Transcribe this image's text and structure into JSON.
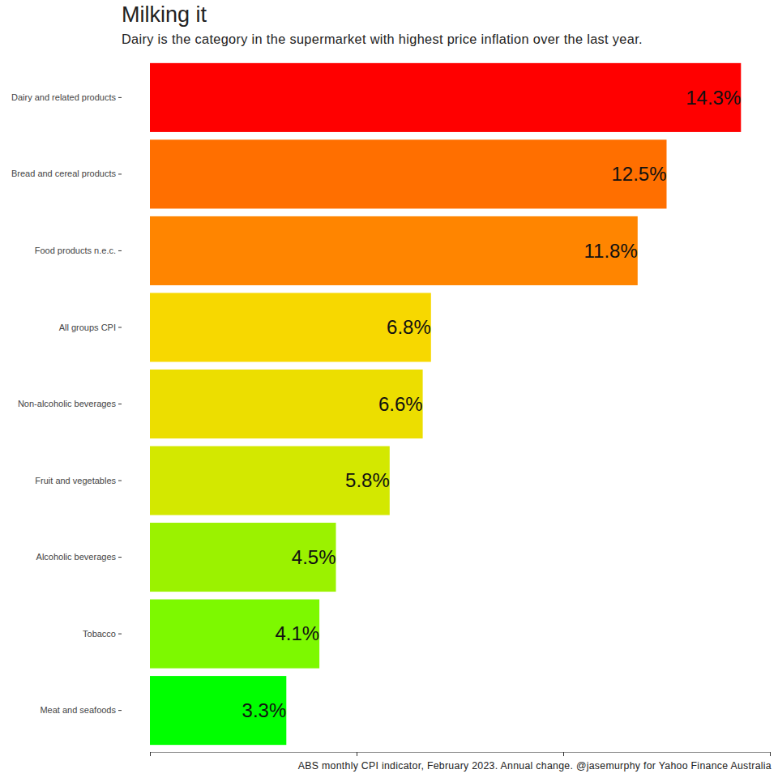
{
  "chart_data": {
    "type": "bar",
    "orientation": "horizontal",
    "title": "Milking it",
    "subtitle": "Dairy is the category in the supermarket with highest price inflation over the last year.",
    "caption": "ABS monthly CPI indicator, February 2023. Annual change. @jasemurphy for Yahoo Finance Australia",
    "categories": [
      "Dairy and related products",
      "Bread and cereal products",
      "Food products n.e.c.",
      "All groups CPI",
      "Non-alcoholic beverages",
      "Fruit and vegetables",
      "Alcoholic beverages",
      "Tobacco",
      "Meat and seafoods"
    ],
    "values": [
      14.3,
      12.5,
      11.8,
      6.8,
      6.6,
      5.8,
      4.5,
      4.1,
      3.3
    ],
    "value_labels": [
      "14.3%",
      "12.5%",
      "11.8%",
      "6.8%",
      "6.6%",
      "5.8%",
      "4.5%",
      "4.1%",
      "3.3%"
    ],
    "colors": [
      "#ff0000",
      "#ff6f00",
      "#ff8500",
      "#f7d800",
      "#ecde00",
      "#d3e800",
      "#9bf200",
      "#7df900",
      "#00ff00"
    ],
    "xlim": [
      0,
      15
    ],
    "xticks": [
      0,
      5,
      10,
      15
    ],
    "data_labels": true,
    "tick_labels": "y",
    "grid": false
  }
}
